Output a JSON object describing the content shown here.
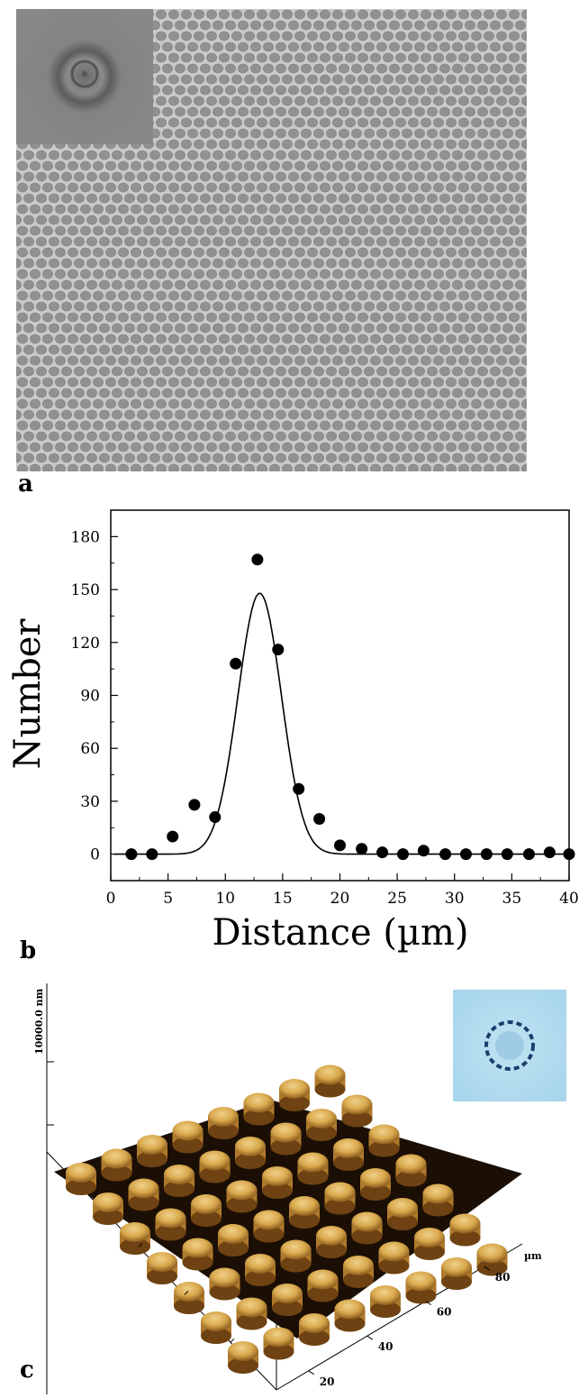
{
  "panels": {
    "a": {
      "label": "a"
    },
    "b": {
      "label": "b"
    },
    "c": {
      "label": "c",
      "z_axis_label": "10000.0 nm",
      "axis_unit": "µm",
      "axis_ticks": [
        "20",
        "40",
        "60",
        "80"
      ]
    }
  },
  "chart_data": {
    "type": "scatter",
    "xlabel": "Distance (µm)",
    "ylabel": "Number",
    "xlim": [
      0,
      40
    ],
    "ylim": [
      -15,
      195
    ],
    "x_ticks": [
      "0",
      "5",
      "10",
      "15",
      "20",
      "25",
      "30",
      "35",
      "40"
    ],
    "y_ticks": [
      "0",
      "30",
      "60",
      "90",
      "120",
      "150",
      "180"
    ],
    "series": [
      {
        "kind": "points",
        "x": [
          1.8,
          3.6,
          5.4,
          7.3,
          9.1,
          10.9,
          12.8,
          14.6,
          16.4,
          18.2,
          20.0,
          21.9,
          23.7,
          25.5,
          27.3,
          29.2,
          31.0,
          32.8,
          34.6,
          36.5,
          38.3,
          40.0
        ],
        "y": [
          0,
          0,
          10,
          28,
          21,
          108,
          167,
          116,
          37,
          20,
          5,
          3,
          1,
          0,
          2,
          0,
          0,
          0,
          0,
          0,
          1,
          0
        ]
      },
      {
        "kind": "gaussian-fit",
        "peak_x": 13.0,
        "peak_y": 148,
        "sigma": 1.9
      }
    ]
  }
}
